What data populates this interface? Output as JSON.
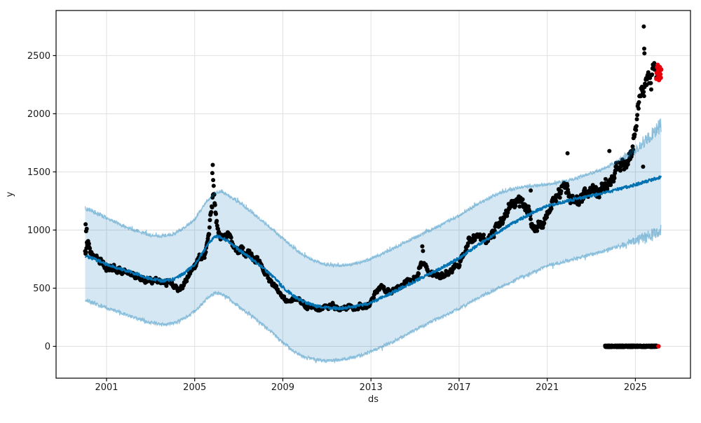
{
  "figure": {
    "background": "#ffffff"
  },
  "chart_data": {
    "type": "scatter",
    "title": "",
    "subtitle": "Prophet-style time-series forecast: black observed points, blue forecast line, light-blue uncertainty band, red anomaly points",
    "xlabel": "ds",
    "ylabel": "y",
    "x_ticks": [
      2001,
      2005,
      2009,
      2013,
      2017,
      2021,
      2025
    ],
    "y_ticks": [
      0,
      500,
      1000,
      1500,
      2000,
      2500
    ],
    "xlim": [
      1998.71,
      2027.5
    ],
    "ylim": [
      -274,
      2888
    ],
    "grid": true,
    "legend": "none",
    "colors": {
      "observed": "#000000",
      "forecast_line": "#0072B2",
      "band_fill": "rgba(0,114,178,0.17)",
      "band_edge": "rgba(0,114,178,0.40)",
      "anomaly": "#e8000b",
      "grid": "#e0e0e0",
      "frame": "#000000",
      "text": "#1a1a1a"
    },
    "forecast": {
      "x_start": 2000.03,
      "x_end": 2026.18,
      "anchors_format": [
        "year",
        "yhat_lower",
        "yhat",
        "yhat_upper"
      ],
      "anchors": [
        [
          2000.03,
          400,
          780,
          1190
        ],
        [
          2000.5,
          365,
          745,
          1150
        ],
        [
          2001,
          330,
          705,
          1105
        ],
        [
          2001.5,
          300,
          670,
          1060
        ],
        [
          2002,
          265,
          645,
          1015
        ],
        [
          2002.5,
          235,
          615,
          985
        ],
        [
          2003,
          205,
          580,
          955
        ],
        [
          2003.5,
          190,
          565,
          945
        ],
        [
          2004,
          195,
          575,
          965
        ],
        [
          2004.5,
          235,
          625,
          1015
        ],
        [
          2005,
          300,
          705,
          1095
        ],
        [
          2005.5,
          400,
          845,
          1235
        ],
        [
          2005.9,
          460,
          950,
          1315
        ],
        [
          2006.2,
          450,
          935,
          1335
        ],
        [
          2006.5,
          420,
          905,
          1305
        ],
        [
          2007,
          340,
          830,
          1240
        ],
        [
          2007.5,
          275,
          760,
          1170
        ],
        [
          2008,
          200,
          690,
          1090
        ],
        [
          2008.5,
          120,
          610,
          1010
        ],
        [
          2009,
          30,
          510,
          930
        ],
        [
          2009.5,
          -45,
          430,
          845
        ],
        [
          2010,
          -95,
          380,
          775
        ],
        [
          2010.5,
          -115,
          345,
          730
        ],
        [
          2011,
          -125,
          330,
          705
        ],
        [
          2011.5,
          -120,
          325,
          695
        ],
        [
          2012,
          -105,
          335,
          700
        ],
        [
          2012.5,
          -80,
          350,
          720
        ],
        [
          2013,
          -45,
          375,
          755
        ],
        [
          2013.5,
          -5,
          420,
          795
        ],
        [
          2014,
          40,
          465,
          840
        ],
        [
          2014.5,
          90,
          515,
          890
        ],
        [
          2015,
          140,
          560,
          935
        ],
        [
          2015.5,
          190,
          610,
          980
        ],
        [
          2016,
          235,
          655,
          1025
        ],
        [
          2016.5,
          280,
          705,
          1075
        ],
        [
          2017,
          325,
          760,
          1125
        ],
        [
          2017.5,
          380,
          825,
          1185
        ],
        [
          2018,
          430,
          890,
          1240
        ],
        [
          2018.5,
          475,
          950,
          1290
        ],
        [
          2019,
          520,
          1010,
          1330
        ],
        [
          2019.5,
          565,
          1065,
          1355
        ],
        [
          2020,
          610,
          1115,
          1375
        ],
        [
          2020.5,
          650,
          1165,
          1385
        ],
        [
          2021,
          690,
          1205,
          1395
        ],
        [
          2021.5,
          715,
          1230,
          1410
        ],
        [
          2022,
          740,
          1255,
          1430
        ],
        [
          2022.5,
          765,
          1275,
          1460
        ],
        [
          2023,
          790,
          1295,
          1490
        ],
        [
          2023.5,
          815,
          1315,
          1525
        ],
        [
          2024,
          845,
          1340,
          1570
        ],
        [
          2024.5,
          875,
          1365,
          1625
        ],
        [
          2025,
          905,
          1390,
          1690
        ],
        [
          2025.5,
          935,
          1420,
          1775
        ],
        [
          2026.18,
          985,
          1455,
          1910
        ]
      ]
    },
    "observed": {
      "x_start": 2000.03,
      "x_end": 2025.95,
      "step_years": 0.0192,
      "anchors_format": [
        "year",
        "y"
      ],
      "anchors": [
        [
          2000.05,
          800
        ],
        [
          2000.15,
          930
        ],
        [
          2000.25,
          850
        ],
        [
          2000.4,
          790
        ],
        [
          2000.6,
          760
        ],
        [
          2000.8,
          730
        ],
        [
          2001.0,
          690
        ],
        [
          2001.3,
          660
        ],
        [
          2001.6,
          655
        ],
        [
          2001.9,
          645
        ],
        [
          2002.1,
          620
        ],
        [
          2002.4,
          585
        ],
        [
          2002.7,
          570
        ],
        [
          2003.0,
          560
        ],
        [
          2003.3,
          550
        ],
        [
          2003.6,
          545
        ],
        [
          2003.9,
          555
        ],
        [
          2004.1,
          540
        ],
        [
          2004.3,
          500
        ],
        [
          2004.5,
          545
        ],
        [
          2004.7,
          610
        ],
        [
          2004.9,
          660
        ],
        [
          2005.1,
          710
        ],
        [
          2005.3,
          760
        ],
        [
          2005.5,
          820
        ],
        [
          2005.65,
          950
        ],
        [
          2005.8,
          1250
        ],
        [
          2005.88,
          1350
        ],
        [
          2005.95,
          1150
        ],
        [
          2006.05,
          1010
        ],
        [
          2006.2,
          950
        ],
        [
          2006.4,
          940
        ],
        [
          2006.6,
          920
        ],
        [
          2006.8,
          860
        ],
        [
          2007.0,
          840
        ],
        [
          2007.3,
          800
        ],
        [
          2007.6,
          770
        ],
        [
          2007.9,
          720
        ],
        [
          2008.2,
          650
        ],
        [
          2008.5,
          560
        ],
        [
          2008.8,
          470
        ],
        [
          2009.1,
          400
        ],
        [
          2009.35,
          385
        ],
        [
          2009.6,
          415
        ],
        [
          2009.85,
          370
        ],
        [
          2010.1,
          340
        ],
        [
          2010.4,
          330
        ],
        [
          2010.7,
          325
        ],
        [
          2011.0,
          335
        ],
        [
          2011.3,
          350
        ],
        [
          2011.55,
          310
        ],
        [
          2011.8,
          330
        ],
        [
          2012.1,
          340
        ],
        [
          2012.4,
          330
        ],
        [
          2012.7,
          350
        ],
        [
          2012.95,
          360
        ],
        [
          2013.2,
          470
        ],
        [
          2013.45,
          530
        ],
        [
          2013.7,
          460
        ],
        [
          2014.0,
          470
        ],
        [
          2014.4,
          510
        ],
        [
          2014.8,
          560
        ],
        [
          2015.1,
          600
        ],
        [
          2015.3,
          740
        ],
        [
          2015.45,
          690
        ],
        [
          2015.6,
          620
        ],
        [
          2015.85,
          600
        ],
        [
          2016.1,
          610
        ],
        [
          2016.4,
          630
        ],
        [
          2016.7,
          665
        ],
        [
          2017.0,
          720
        ],
        [
          2017.3,
          850
        ],
        [
          2017.6,
          950
        ],
        [
          2017.9,
          970
        ],
        [
          2018.2,
          900
        ],
        [
          2018.5,
          950
        ],
        [
          2018.8,
          1040
        ],
        [
          2019.1,
          1140
        ],
        [
          2019.4,
          1230
        ],
        [
          2019.7,
          1280
        ],
        [
          2019.95,
          1240
        ],
        [
          2020.2,
          1100
        ],
        [
          2020.45,
          990
        ],
        [
          2020.7,
          1060
        ],
        [
          2020.95,
          1150
        ],
        [
          2021.2,
          1230
        ],
        [
          2021.5,
          1290
        ],
        [
          2021.8,
          1320
        ],
        [
          2022.1,
          1310
        ],
        [
          2022.4,
          1260
        ],
        [
          2022.7,
          1290
        ],
        [
          2023.0,
          1330
        ],
        [
          2023.3,
          1340
        ],
        [
          2023.6,
          1360
        ],
        [
          2023.9,
          1420
        ],
        [
          2024.2,
          1500
        ],
        [
          2024.5,
          1560
        ],
        [
          2024.8,
          1640
        ],
        [
          2024.95,
          1750
        ],
        [
          2025.1,
          1950
        ],
        [
          2025.25,
          2200
        ],
        [
          2025.4,
          2300
        ],
        [
          2025.6,
          2330
        ],
        [
          2025.8,
          2340
        ],
        [
          2025.95,
          2350
        ]
      ],
      "extra_points": [
        [
          2000.05,
          1050
        ],
        [
          2000.07,
          990
        ],
        [
          2000.1,
          1010
        ],
        [
          2005.82,
          1560
        ],
        [
          2005.8,
          1490
        ],
        [
          2005.84,
          1430
        ],
        [
          2005.86,
          1380
        ],
        [
          2015.33,
          860
        ],
        [
          2015.36,
          820
        ],
        [
          2020.25,
          1340
        ],
        [
          2021.92,
          1660
        ],
        [
          2023.82,
          1680
        ],
        [
          2025.35,
          1545
        ],
        [
          2025.38,
          2750
        ],
        [
          2025.4,
          2560
        ],
        [
          2025.41,
          2520
        ]
      ],
      "zero_run": {
        "x_start": 2023.62,
        "x_end": 2025.98,
        "value": 0,
        "step_years": 0.004
      }
    },
    "anomalies": {
      "top": [
        [
          2025.95,
          2300
        ],
        [
          2025.97,
          2350
        ],
        [
          2025.99,
          2400
        ],
        [
          2026.01,
          2420
        ],
        [
          2026.03,
          2370
        ],
        [
          2026.05,
          2320
        ],
        [
          2026.07,
          2290
        ],
        [
          2026.09,
          2360
        ],
        [
          2026.11,
          2400
        ],
        [
          2026.13,
          2340
        ],
        [
          2026.15,
          2310
        ],
        [
          2026.17,
          2380
        ]
      ],
      "bottom": [
        [
          2026.05,
          0
        ]
      ]
    }
  }
}
